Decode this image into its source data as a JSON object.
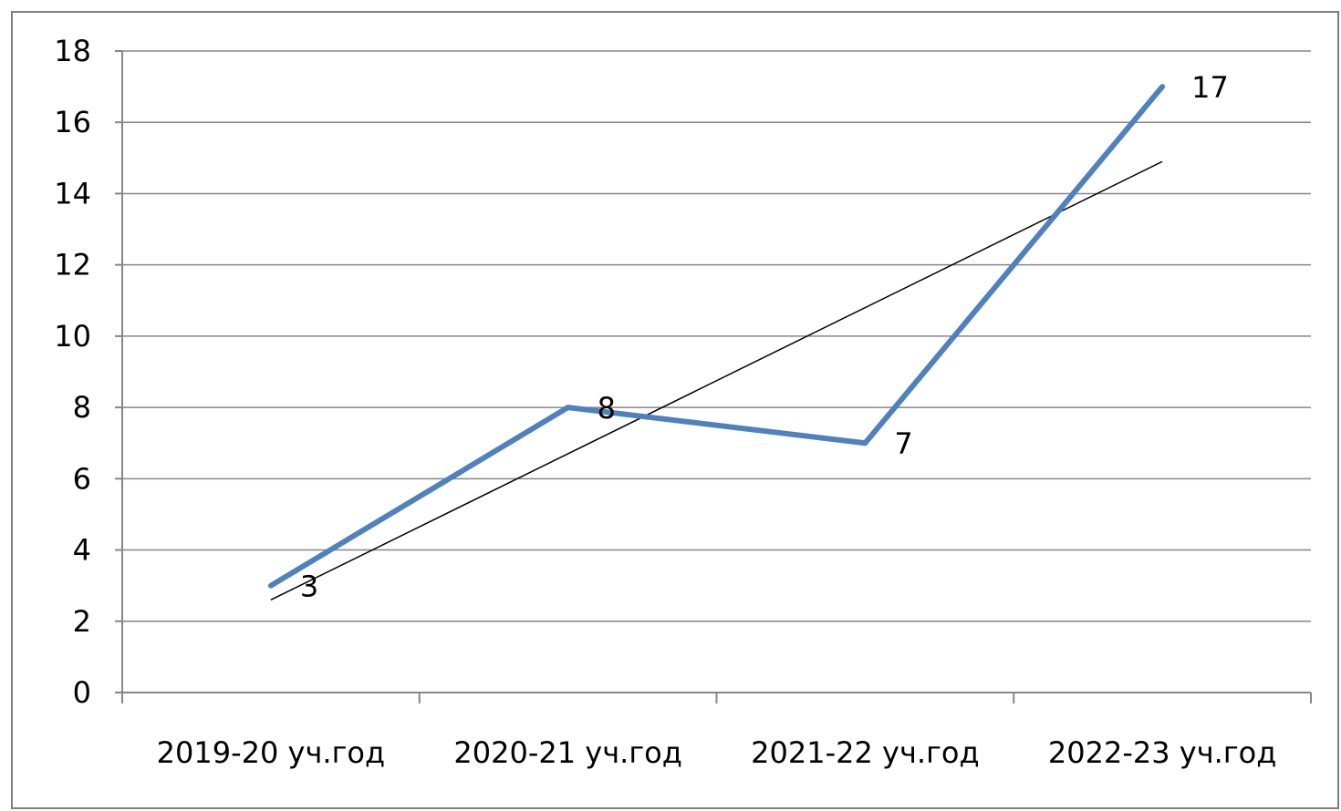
{
  "chart_data": {
    "type": "line",
    "categories": [
      "2019-20 уч.год",
      "2020-21 уч.год",
      "2021-22 уч.год",
      "2022-23 уч.год"
    ],
    "series": [
      {
        "values": [
          3,
          8,
          7,
          17
        ],
        "color": "#4f81bd"
      }
    ],
    "trendline": {
      "type": "linear",
      "color": "#000000"
    },
    "data_labels": [
      "3",
      "8",
      "7",
      "17"
    ],
    "yticks": [
      "0",
      "2",
      "4",
      "6",
      "8",
      "10",
      "12",
      "14",
      "16",
      "18"
    ],
    "ylim": [
      0,
      18
    ],
    "grid": true,
    "legend": "none",
    "title": "",
    "xlabel": "",
    "ylabel": ""
  }
}
